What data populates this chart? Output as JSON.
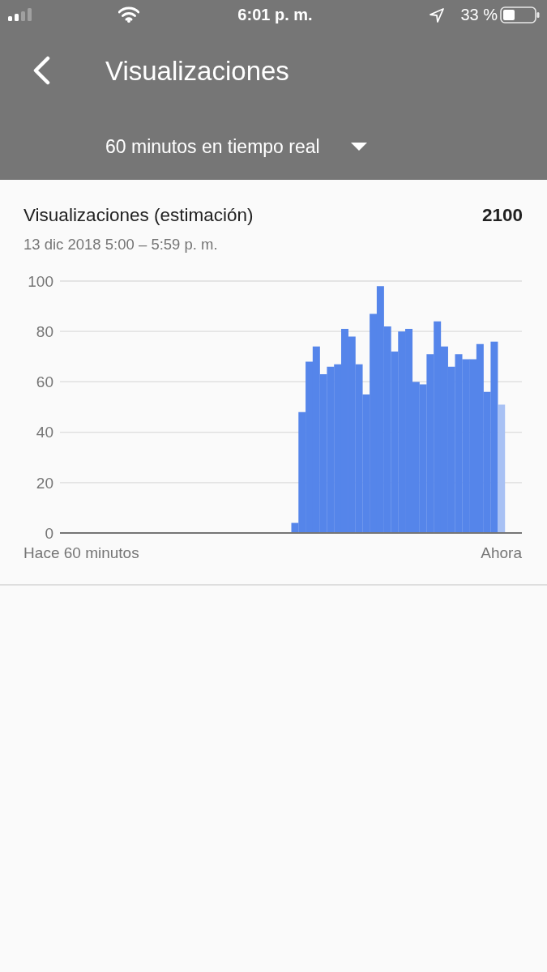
{
  "chart_data": {
    "type": "bar",
    "title": "Visualizaciones (estimación)",
    "subtitle": "13 dic 2018 5:00 – 5:59 p. m.",
    "annotations": [
      "6:01 p. m.",
      "33 %",
      "Visualizaciones",
      "60 minutos en tiempo real",
      "2100"
    ],
    "categories": [
      "Hace 60 minutos",
      null,
      null,
      null,
      null,
      null,
      null,
      null,
      null,
      null,
      null,
      null,
      null,
      null,
      null,
      null,
      null,
      null,
      null,
      null,
      null,
      null,
      null,
      null,
      null,
      null,
      null,
      null,
      null,
      null,
      null,
      null,
      null,
      null,
      null,
      null,
      null,
      null,
      null,
      null,
      null,
      null,
      null,
      null,
      null,
      null,
      null,
      null,
      null,
      null,
      null,
      null,
      null,
      null,
      null,
      null,
      null,
      null,
      null,
      "Ahora"
    ],
    "values": [
      0,
      0,
      0,
      0,
      0,
      0,
      0,
      0,
      0,
      0,
      0,
      0,
      0,
      0,
      0,
      0,
      0,
      0,
      0,
      0,
      0,
      0,
      0,
      0,
      0,
      0,
      0,
      0,
      0,
      0,
      4,
      48,
      68,
      74,
      63,
      66,
      67,
      81,
      78,
      67,
      55,
      87,
      98,
      82,
      72,
      80,
      81,
      60,
      59,
      71,
      84,
      74,
      66,
      71,
      69,
      69,
      75,
      56,
      76,
      51
    ],
    "colors": [
      "#5585ea",
      "#5585ea",
      "#5585ea",
      "#5585ea",
      "#5585ea",
      "#5585ea",
      "#5585ea",
      "#5585ea",
      "#5585ea",
      "#5585ea",
      "#5585ea",
      "#5585ea",
      "#5585ea",
      "#5585ea",
      "#5585ea",
      "#5585ea",
      "#5585ea",
      "#5585ea",
      "#5585ea",
      "#5585ea",
      "#5585ea",
      "#5585ea",
      "#5585ea",
      "#5585ea",
      "#5585ea",
      "#5585ea",
      "#5585ea",
      "#5585ea",
      "#5585ea",
      "#5585ea",
      "#5585ea",
      "#5585ea",
      "#5585ea",
      "#5585ea",
      "#5585ea",
      "#5585ea",
      "#5585ea",
      "#5585ea",
      "#5585ea",
      "#5585ea",
      "#5585ea",
      "#5585ea",
      "#5585ea",
      "#5585ea",
      "#5585ea",
      "#5585ea",
      "#5585ea",
      "#5585ea",
      "#5585ea",
      "#5585ea",
      "#5585ea",
      "#5585ea",
      "#5585ea",
      "#5585ea",
      "#5585ea",
      "#5585ea",
      "#5585ea",
      "#5585ea",
      "#5585ea",
      "#a8c1f4"
    ],
    "ylim": [
      0,
      100
    ],
    "yticks": [
      0,
      20,
      40,
      60,
      80,
      100
    ],
    "grid": "y"
  }
}
